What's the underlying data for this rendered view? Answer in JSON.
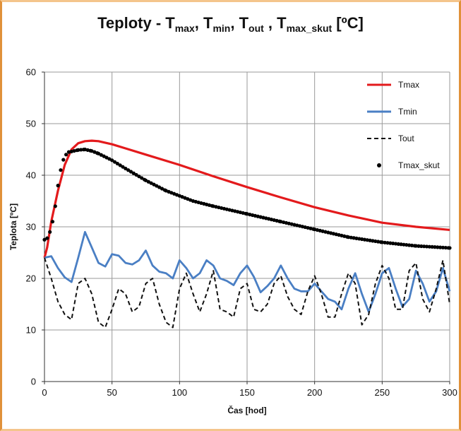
{
  "chart_data": {
    "type": "line",
    "title": {
      "prefix": "Teploty - ",
      "parts": [
        {
          "base": "T",
          "sub": "max",
          "sep": ", "
        },
        {
          "base": "T",
          "sub": "min",
          "sep": ", "
        },
        {
          "base": "T",
          "sub": "out",
          "sep": " , "
        },
        {
          "base": "T",
          "sub": "max_skut",
          "sep": " "
        }
      ],
      "unit": "[ºC]"
    },
    "xlabel": "Čas [hod]",
    "ylabel": "Teplota  [ºC]",
    "xlim": [
      0,
      300
    ],
    "ylim": [
      0,
      60
    ],
    "xticks": [
      0,
      50,
      100,
      150,
      200,
      250,
      300
    ],
    "yticks": [
      0,
      10,
      20,
      30,
      40,
      50,
      60
    ],
    "grid": true,
    "legend_position": "top-right",
    "series": [
      {
        "name": "Tmax",
        "style": "line",
        "color": "#e31a1c",
        "x": [
          0,
          2,
          5,
          10,
          15,
          20,
          25,
          30,
          35,
          40,
          50,
          60,
          75,
          100,
          125,
          150,
          175,
          200,
          225,
          250,
          275,
          300
        ],
        "y": [
          24,
          26,
          31,
          37,
          42,
          45,
          46.2,
          46.6,
          46.7,
          46.6,
          46,
          45.2,
          44,
          42,
          39.8,
          37.7,
          35.7,
          33.8,
          32.2,
          30.8,
          30,
          29.4
        ]
      },
      {
        "name": "Tmin",
        "style": "line",
        "color": "#4a7fc4",
        "x": [
          0,
          5,
          10,
          15,
          20,
          25,
          30,
          35,
          40,
          45,
          50,
          55,
          60,
          65,
          70,
          75,
          80,
          85,
          90,
          95,
          100,
          105,
          110,
          115,
          120,
          125,
          130,
          135,
          140,
          145,
          150,
          155,
          160,
          165,
          170,
          175,
          180,
          185,
          190,
          195,
          200,
          205,
          210,
          215,
          220,
          225,
          230,
          235,
          240,
          245,
          250,
          255,
          260,
          265,
          270,
          275,
          280,
          285,
          290,
          295,
          300
        ],
        "y": [
          24,
          24.3,
          22,
          20.2,
          19.3,
          24,
          29,
          26,
          23,
          22.3,
          24.7,
          24.4,
          23,
          22.7,
          23.5,
          25.4,
          22.5,
          21.3,
          21,
          20,
          23.5,
          22,
          20,
          21,
          23.5,
          22.5,
          20,
          19.5,
          18.7,
          21,
          22.5,
          20.3,
          17.3,
          18.5,
          20,
          22.5,
          20,
          18,
          17.5,
          17.5,
          19,
          17.5,
          16,
          15.5,
          14,
          18,
          21,
          17,
          13.5,
          17,
          21,
          22,
          18,
          14.5,
          16,
          21.5,
          19,
          15.5,
          17.5,
          22,
          17.5
        ]
      },
      {
        "name": "Tout",
        "style": "dashed",
        "color": "#111111",
        "x": [
          0,
          5,
          10,
          15,
          20,
          25,
          30,
          35,
          40,
          45,
          50,
          55,
          60,
          65,
          70,
          75,
          80,
          85,
          90,
          95,
          100,
          105,
          110,
          115,
          120,
          125,
          130,
          135,
          140,
          145,
          150,
          155,
          160,
          165,
          170,
          175,
          180,
          185,
          190,
          195,
          200,
          205,
          210,
          215,
          220,
          225,
          230,
          235,
          240,
          245,
          250,
          255,
          260,
          265,
          270,
          275,
          280,
          285,
          290,
          295,
          300
        ],
        "y": [
          24,
          20,
          15.5,
          13,
          12,
          19,
          20,
          17,
          11.5,
          10.5,
          14,
          18,
          17,
          13.5,
          14.5,
          19,
          20,
          15,
          11.5,
          10.5,
          18,
          21,
          17,
          13.5,
          17,
          21.5,
          14,
          13.5,
          12.5,
          18,
          19,
          14,
          13.5,
          15,
          19,
          20.5,
          16.5,
          14,
          13,
          17.5,
          20.5,
          17,
          12.5,
          12.5,
          17,
          21,
          19,
          11,
          13,
          19,
          22.5,
          20,
          14,
          14,
          21.5,
          23,
          16,
          13.5,
          18,
          23.5,
          15
        ]
      },
      {
        "name": "Tmax_skut",
        "style": "dots",
        "color": "#000000",
        "x": [
          0,
          2,
          4,
          6,
          8,
          10,
          12,
          14,
          16,
          18,
          20,
          25,
          30,
          35,
          40,
          50,
          60,
          75,
          90,
          100,
          110,
          125,
          150,
          175,
          200,
          225,
          250,
          275,
          300
        ],
        "y": [
          27.5,
          27.8,
          29,
          31,
          34,
          38,
          41,
          43,
          44,
          44.5,
          44.6,
          44.9,
          45,
          44.7,
          44.2,
          42.9,
          41.3,
          39,
          37,
          36,
          35,
          34,
          32.5,
          31,
          29.5,
          28,
          27,
          26.3,
          25.9
        ]
      }
    ]
  }
}
